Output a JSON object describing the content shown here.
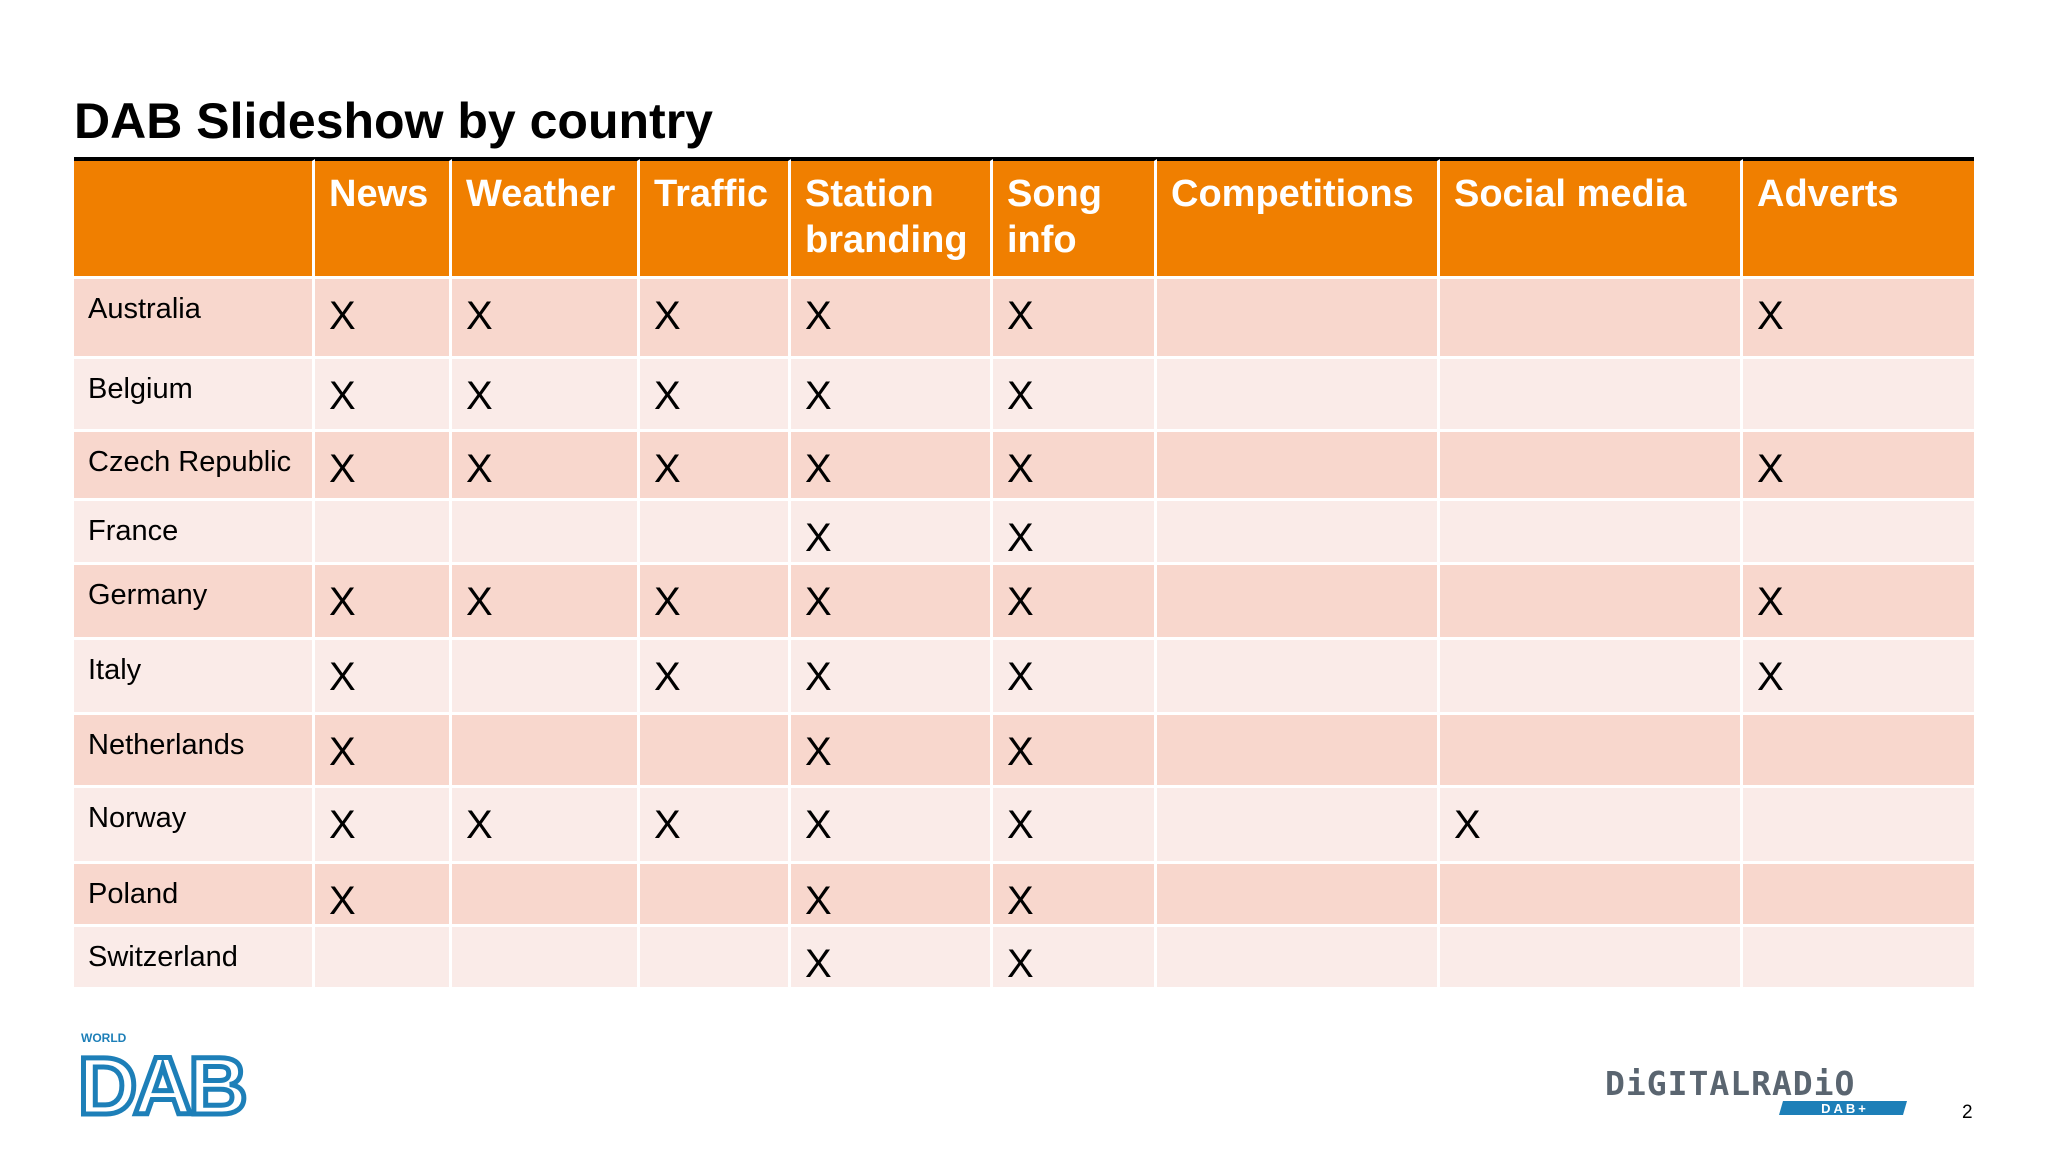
{
  "slide": {
    "title": "DAB Slideshow by country",
    "page_number": "2"
  },
  "table": {
    "columns": [
      "",
      "News",
      "Weather",
      "Traffic",
      "Station branding",
      "Song info",
      "Competitions",
      "Social media",
      "Adverts"
    ],
    "rows": [
      {
        "country": "Australia",
        "cells": [
          "X",
          "X",
          "X",
          "X",
          "X",
          "",
          "",
          "X"
        ]
      },
      {
        "country": "Belgium",
        "cells": [
          "X",
          "X",
          "X",
          "X",
          "X",
          "",
          "",
          ""
        ]
      },
      {
        "country": "Czech Republic",
        "cells": [
          "X",
          "X",
          "X",
          "X",
          "X",
          "",
          "",
          "X"
        ]
      },
      {
        "country": "France",
        "cells": [
          "",
          "",
          "",
          "X",
          "X",
          "",
          "",
          ""
        ]
      },
      {
        "country": "Germany",
        "cells": [
          "X",
          "X",
          "X",
          "X",
          "X",
          "",
          "",
          "X"
        ]
      },
      {
        "country": "Italy",
        "cells": [
          "X",
          "",
          "X",
          "X",
          "X",
          "",
          "",
          "X"
        ]
      },
      {
        "country": "Netherlands",
        "cells": [
          "X",
          "",
          "",
          "X",
          "X",
          "",
          "",
          ""
        ]
      },
      {
        "country": "Norway",
        "cells": [
          "X",
          "X",
          "X",
          "X",
          "X",
          "",
          "X",
          ""
        ]
      },
      {
        "country": "Poland",
        "cells": [
          "X",
          "",
          "",
          "X",
          "X",
          "",
          "",
          ""
        ]
      },
      {
        "country": "Switzerland",
        "cells": [
          "",
          "",
          "",
          "X",
          "X",
          "",
          "",
          ""
        ]
      }
    ]
  },
  "logos": {
    "left": {
      "name": "world-dab-logo",
      "small_text": "WORLD",
      "main_text": "DAB"
    },
    "right": {
      "name": "digital-radio-dab-plus-logo",
      "main_text": "DiGITALRADiO",
      "sub_text": "DAB+"
    }
  },
  "colors": {
    "header_orange": "#f07f00",
    "row_dark": "#f8d7cd",
    "row_light": "#faebe8",
    "dab_blue": "#1d7fb8",
    "digital_grey": "#5a6570"
  }
}
